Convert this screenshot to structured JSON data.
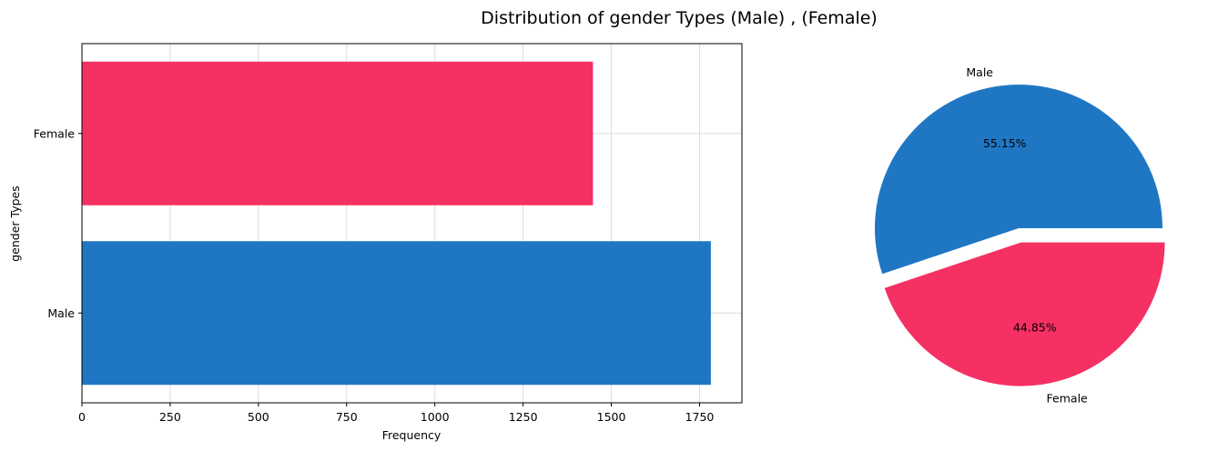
{
  "figure": {
    "title": "Distribution of gender Types (Male) , (Female)"
  },
  "colors": {
    "male": "#1f77c4",
    "female": "#f53063",
    "grid": "#dcdcdc",
    "axis": "#000000"
  },
  "chart_data": [
    {
      "type": "bar",
      "orientation": "horizontal",
      "categories": [
        "Male",
        "Female"
      ],
      "values": [
        1782,
        1448
      ],
      "colors": [
        "#1f77c4",
        "#f53063"
      ],
      "xlabel": "Frequency",
      "ylabel": "gender Types",
      "xlim": [
        0,
        1870
      ],
      "xticks": [
        0,
        250,
        500,
        750,
        1000,
        1250,
        1500,
        1750
      ],
      "grid": true
    },
    {
      "type": "pie",
      "labels": [
        "Male",
        "Female"
      ],
      "values": [
        55.15,
        44.85
      ],
      "autopct_labels": [
        "55.15%",
        "44.85%"
      ],
      "colors": [
        "#1f77c4",
        "#f53063"
      ],
      "explode": [
        0,
        0.1
      ]
    }
  ]
}
